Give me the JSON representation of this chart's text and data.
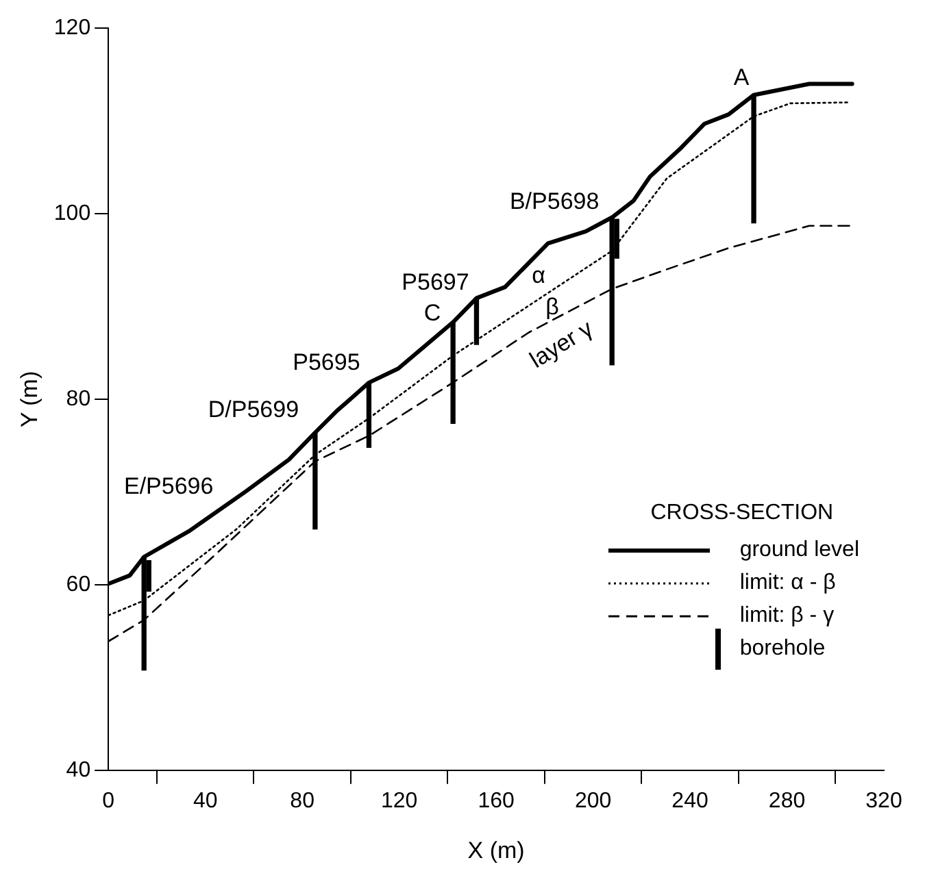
{
  "chart_data": {
    "type": "line",
    "xlabel": "X (m)",
    "ylabel": "Y (m)",
    "legend_title": "CROSS-SECTION",
    "xlim": [
      0,
      320
    ],
    "xticks": [
      0,
      40,
      80,
      120,
      160,
      200,
      240,
      280,
      320
    ],
    "ylim": [
      40,
      120
    ],
    "yticks": [
      40,
      60,
      80,
      100,
      120
    ],
    "grid": false,
    "legend": "bottom right",
    "marker": "none",
    "series": [
      {
        "name": "ground level",
        "color": "#000000",
        "line_style": "solid",
        "x": [
          0,
          8.8,
          14.7,
          33.4,
          56.9,
          74.5,
          85.3,
          94.1,
          107.6,
          119.6,
          142.2,
          151.9,
          163.7,
          181.4,
          197,
          207.8,
          216.7,
          223.5,
          236.3,
          246,
          255.9,
          266.3,
          289.2,
          306.9
        ],
        "values": [
          60.1,
          61.0,
          63.0,
          65.8,
          70.1,
          73.5,
          76.4,
          78.7,
          81.8,
          83.3,
          88.3,
          90.9,
          92.1,
          96.8,
          98.1,
          99.6,
          101.4,
          104.0,
          107.1,
          109.7,
          110.7,
          112.8,
          114.0,
          114.0
        ]
      },
      {
        "name": "limit: α - β",
        "color": "#000000",
        "line_style": "dotted",
        "x": [
          0,
          14.7,
          52.9,
          85.3,
          107.8,
          142.2,
          207.8,
          230.4,
          266.3,
          281.4,
          304.9
        ],
        "values": [
          56.7,
          58.3,
          66.0,
          74.0,
          78.0,
          84.7,
          96.0,
          103.8,
          110.5,
          111.9,
          112.0
        ]
      },
      {
        "name": "limit: β - γ",
        "color": "#000000",
        "line_style": "dashed",
        "x": [
          0,
          14.7,
          43.1,
          85.3,
          107.8,
          142.2,
          173.5,
          207.8,
          230.4,
          255.9,
          265.7,
          289.2,
          306.9
        ],
        "values": [
          53.9,
          56.2,
          63.0,
          73.3,
          76.1,
          81.8,
          87.2,
          91.9,
          94.0,
          96.3,
          97.0,
          98.7,
          98.7
        ]
      },
      {
        "name": "borehole",
        "type": "bar",
        "color": "#000000",
        "x": [
          14.7,
          16.7,
          85.3,
          107.5,
          142.2,
          151.9,
          207.8,
          209.8,
          266.3
        ],
        "base": [
          50.8,
          59.3,
          66.0,
          74.8,
          77.4,
          85.9,
          83.7,
          95.2,
          99.0
        ],
        "values": [
          12.2,
          3.3,
          10.4,
          7.0,
          10.9,
          5.0,
          15.9,
          4.2,
          13.8
        ]
      }
    ],
    "annotations": [
      {
        "text": "E/P5696",
        "x": 14.7,
        "y": 63.0
      },
      {
        "text": "D/P5699",
        "x": 85.3,
        "y": 76.4
      },
      {
        "text": "P5695",
        "x": 107.5,
        "y": 81.8
      },
      {
        "text": "C",
        "x": 142.2,
        "y": 88.3
      },
      {
        "text": "P5697",
        "x": 151.9,
        "y": 90.9
      },
      {
        "text": "B/P5698",
        "x": 207.8,
        "y": 99.6
      },
      {
        "text": "A",
        "x": 266.3,
        "y": 112.8
      },
      "α",
      "β",
      "layer γ"
    ]
  }
}
